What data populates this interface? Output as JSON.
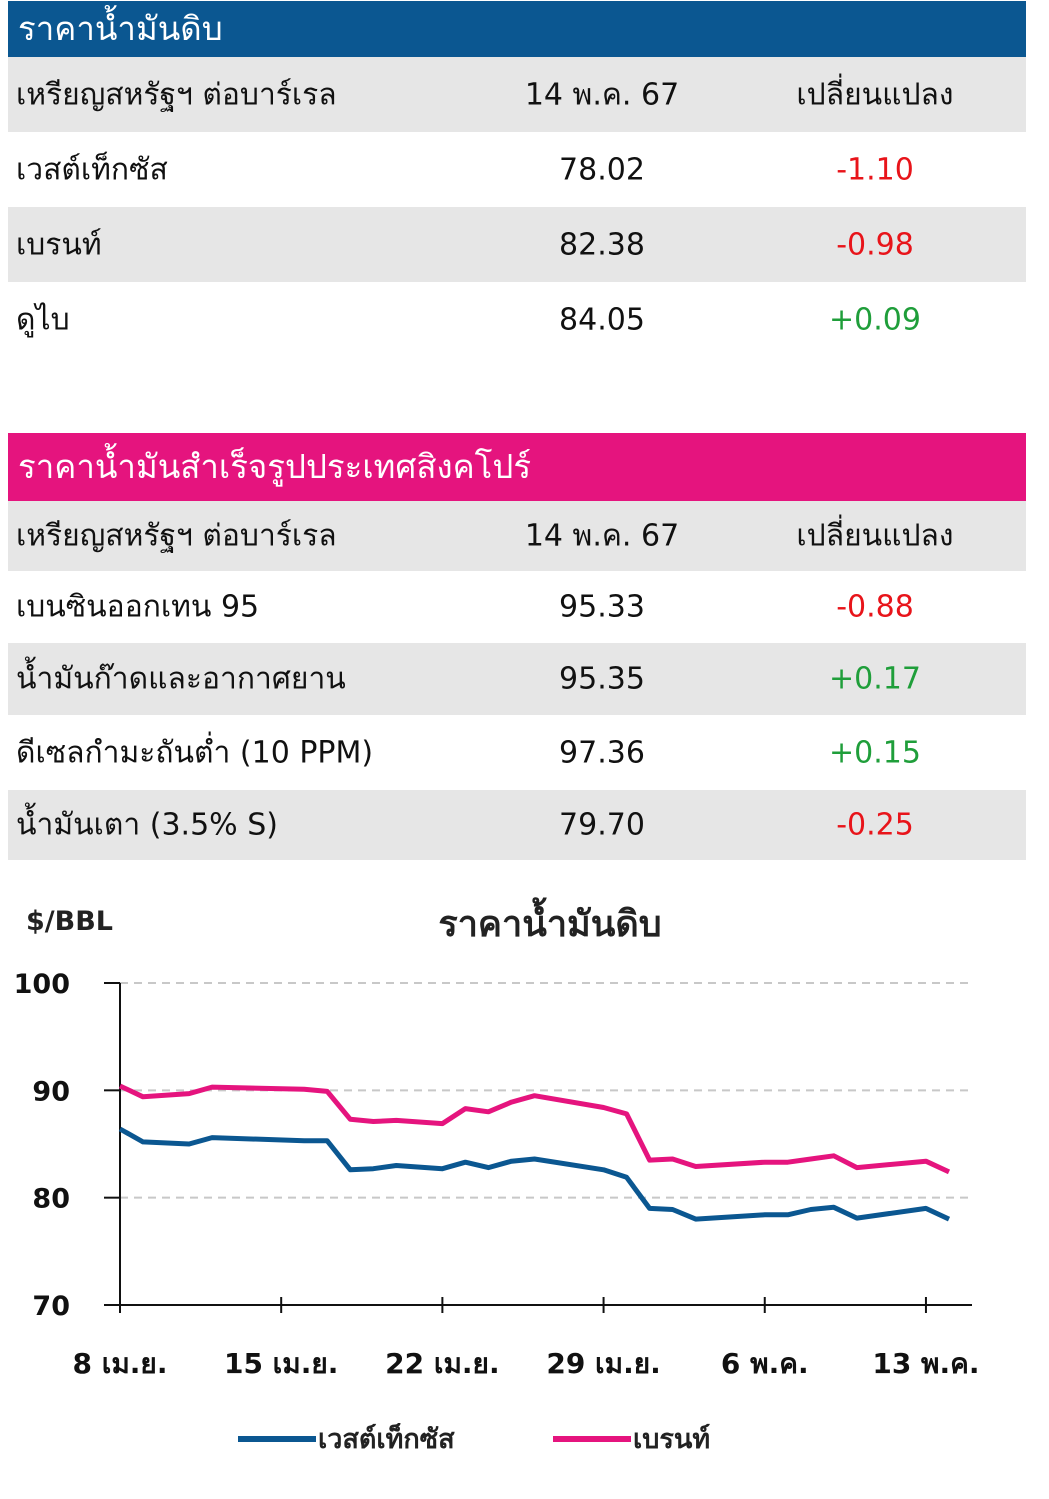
{
  "crude_table": {
    "title": "ราคาน้ำมันดิบ",
    "header": {
      "name": "เหรียญสหรัฐฯ ต่อบาร์เรล",
      "date": "14 พ.ค. 67",
      "change": "เปลี่ยนแปลง"
    },
    "rows": [
      {
        "name": "เวสต์เท็กซัส",
        "price": "78.02",
        "change": "-1.10"
      },
      {
        "name": "เบรนท์",
        "price": "82.38",
        "change": "-0.98"
      },
      {
        "name": "ดูไบ",
        "price": "84.05",
        "change": "+0.09"
      }
    ]
  },
  "sg_table": {
    "title": "ราคาน้ำมันสำเร็จรูปประเทศสิงคโปร์",
    "header": {
      "name": "เหรียญสหรัฐฯ ต่อบาร์เรล",
      "date": "14 พ.ค. 67",
      "change": "เปลี่ยนแปลง"
    },
    "rows": [
      {
        "name": "เบนซินออกเทน 95",
        "price": "95.33",
        "change": "-0.88"
      },
      {
        "name": "น้ำมันก๊าดและอากาศยาน",
        "price": "95.35",
        "change": "+0.17"
      },
      {
        "name": "ดีเซลกำมะถันต่ำ (10 PPM)",
        "price": "97.36",
        "change": "+0.15"
      },
      {
        "name": "น้ำมันเตา (3.5% S)",
        "price": "79.70",
        "change": "-0.25"
      }
    ]
  },
  "colors": {
    "negative": "#e8141a",
    "positive": "#1f9e3a",
    "wti": "#0b5791",
    "brent": "#e5147e"
  },
  "chart_data": {
    "type": "line",
    "title": "ราคาน้ำมันดิบ",
    "ylabel": "$/BBL",
    "ylim": [
      70,
      100
    ],
    "yticks": [
      70,
      80,
      90,
      100
    ],
    "xlim": [
      0,
      37
    ],
    "xticks": [
      0,
      7,
      14,
      21,
      28,
      35
    ],
    "xtick_labels": [
      "8 เม.ย.",
      "15 เม.ย.",
      "22 เม.ย.",
      "29 เม.ย.",
      "6 พ.ค.",
      "13 พ.ค."
    ],
    "grid": "horizontal-dashed",
    "legend": "bottom",
    "x": [
      0,
      1,
      3,
      4,
      8,
      9,
      10,
      11,
      12,
      14,
      15,
      16,
      17,
      18,
      21,
      22,
      23,
      24,
      25,
      28,
      29,
      30,
      31,
      32,
      35,
      36
    ],
    "series": [
      {
        "name": "เวสต์เท็กซัส",
        "values": [
          86.4,
          85.2,
          85.0,
          85.6,
          85.3,
          85.3,
          82.6,
          82.7,
          83.0,
          82.7,
          83.3,
          82.8,
          83.4,
          83.6,
          82.6,
          81.9,
          79.0,
          78.9,
          78.0,
          78.4,
          78.4,
          78.9,
          79.1,
          78.1,
          79.0,
          78.0
        ]
      },
      {
        "name": "เบรนท์",
        "values": [
          90.4,
          89.4,
          89.7,
          90.3,
          90.1,
          89.9,
          87.3,
          87.1,
          87.2,
          86.9,
          88.3,
          88.0,
          88.9,
          89.5,
          88.4,
          87.8,
          83.5,
          83.6,
          82.9,
          83.3,
          83.3,
          83.6,
          83.9,
          82.8,
          83.4,
          82.4
        ]
      }
    ]
  }
}
